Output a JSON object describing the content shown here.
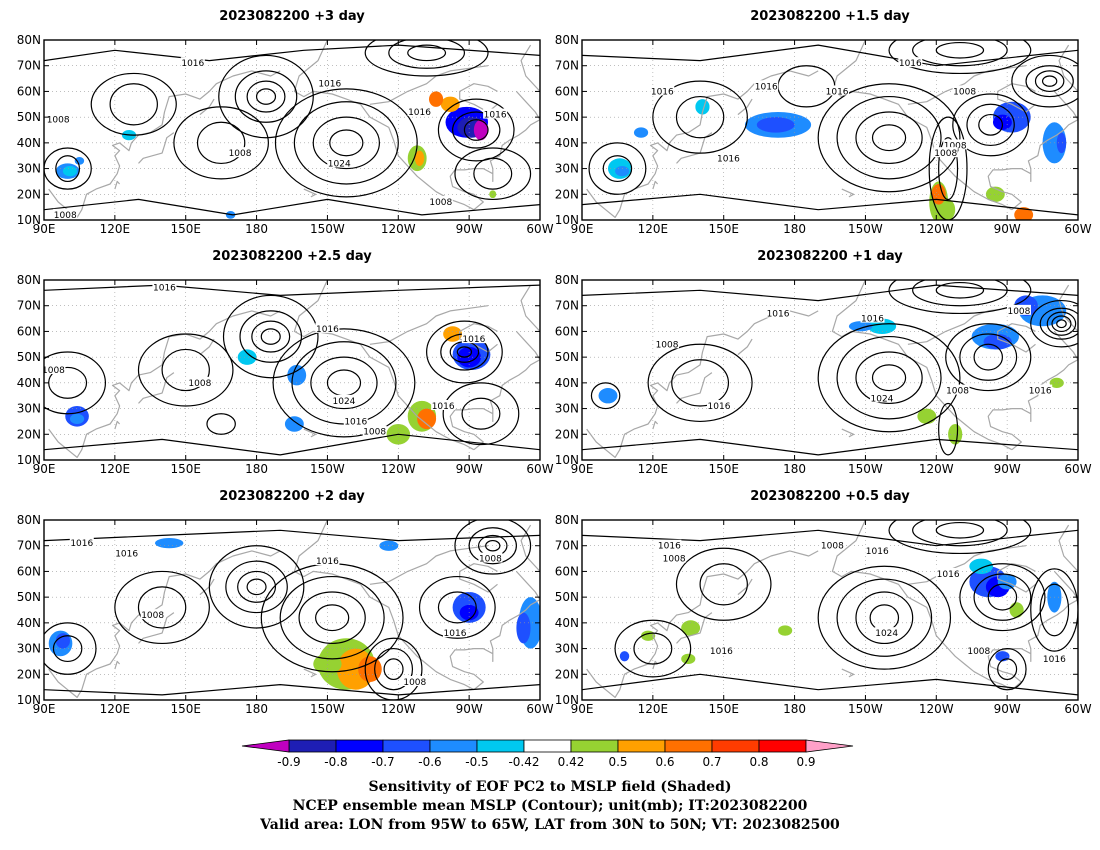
{
  "panels": [
    {
      "title": "2023082200  +3 day",
      "labels": [
        "1016",
        "1008",
        "1016",
        "1016",
        "1008",
        "1024",
        "1016",
        "1008",
        "1008"
      ]
    },
    {
      "title": "2023082200  +1.5 day",
      "labels": [
        "1016",
        "1016",
        "1016",
        "1008",
        "1016",
        "1008",
        "1016",
        "1008"
      ]
    },
    {
      "title": "2023082200  +2.5 day",
      "labels": [
        "1016",
        "1016",
        "1016",
        "1008",
        "1008",
        "1024",
        "1016",
        "1016",
        "1008"
      ]
    },
    {
      "title": "2023082200  +1 day",
      "labels": [
        "1016",
        "1016",
        "1008",
        "1008",
        "1016",
        "1024",
        "1008",
        "1016"
      ]
    },
    {
      "title": "2023082200  +2 day",
      "labels": [
        "1016",
        "1016",
        "1016",
        "1008",
        "1008",
        "1016",
        "1008"
      ]
    },
    {
      "title": "2023082200  +0.5 day",
      "labels": [
        "1016",
        "1008",
        "1008",
        "1016",
        "1016",
        "1024",
        "1016",
        "1008",
        "1016"
      ]
    }
  ],
  "axes": {
    "x_ticks": [
      "90E",
      "120E",
      "150E",
      "180",
      "150W",
      "120W",
      "90W",
      "60W"
    ],
    "y_ticks": [
      "10N",
      "20N",
      "30N",
      "40N",
      "50N",
      "60N",
      "70N",
      "80N"
    ]
  },
  "colorbar": {
    "labels": [
      "-0.9",
      "-0.8",
      "-0.7",
      "-0.6",
      "-0.5",
      "-0.42",
      "0.42",
      "0.5",
      "0.6",
      "0.7",
      "0.8",
      "0.9"
    ],
    "colors": [
      "#c000c0",
      "#1e1eb4",
      "#0000ff",
      "#1e50ff",
      "#1e8cff",
      "#00c8f0",
      "#ffffff",
      "#96d232",
      "#ffa000",
      "#ff7000",
      "#ff3c00",
      "#ff0000",
      "#ffa0c8"
    ]
  },
  "caption": [
    "Sensitivity of EOF PC2 to MSLP field (Shaded)",
    "NCEP ensemble mean MSLP (Contour); unit(mb); IT:2023082200",
    "Valid area: LON from 95W to 65W, LAT from 30N to 50N; VT: 2023082500"
  ],
  "colors": {
    "contour": "#000000",
    "coast": "#a8a8a8",
    "grid": "#999999"
  }
}
